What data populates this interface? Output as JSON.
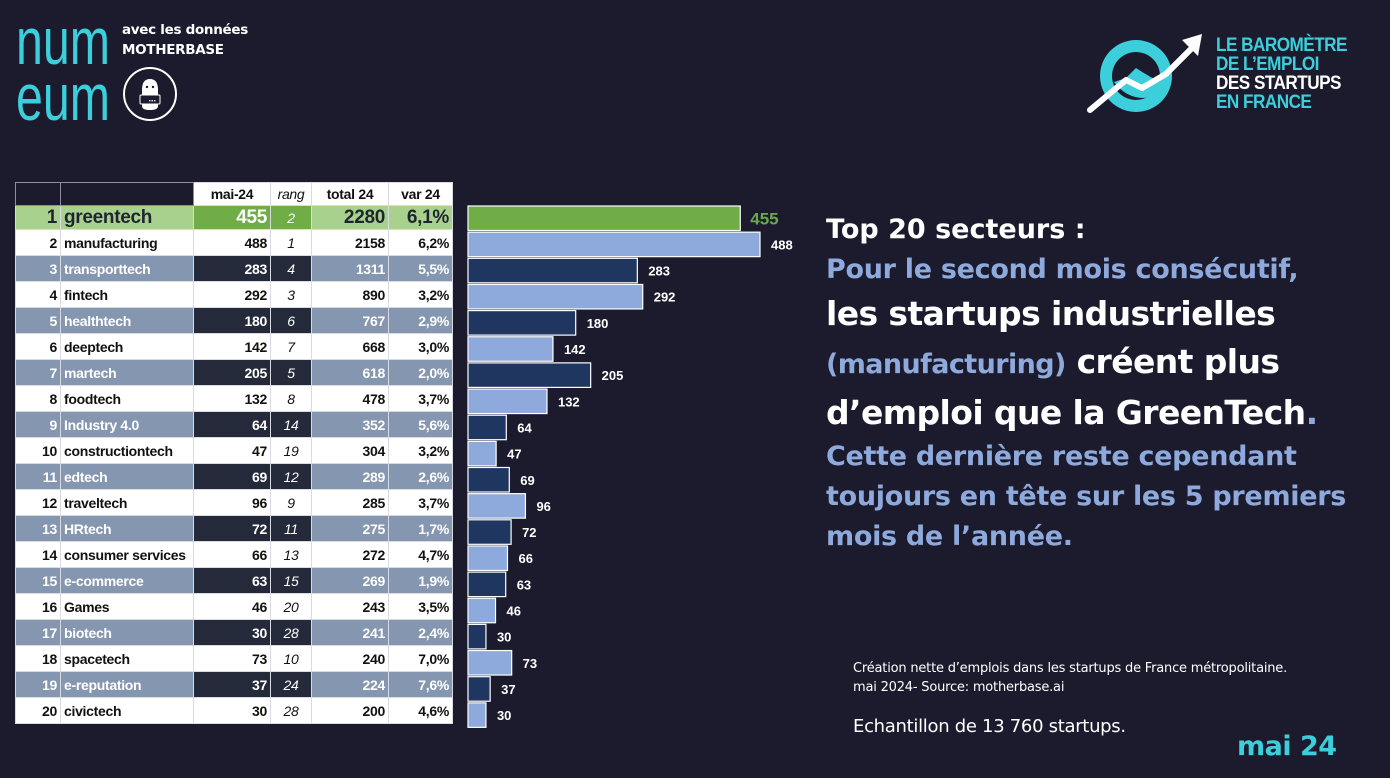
{
  "header": {
    "logo_name": "numeum",
    "logo_lines": [
      "num",
      "eum"
    ],
    "partner_line1": "avec les données",
    "partner_line2": "MOTHERBASE",
    "mascot_icon": "motherbase-mascot-icon",
    "barometre_lines": [
      "LE BAROMÈTRE",
      "DE L’EMPLOI",
      "DES STARTUPS",
      "EN FRANCE"
    ],
    "barometre_icon": "trend-arrow-circle-icon"
  },
  "colors": {
    "background": "#1c1b2e",
    "accent_cyan": "#3ccfdb",
    "accent_blue_text": "#8ea9db",
    "green_bar": "#70ad47",
    "green_row": "#a9d18e",
    "light_bar": "#8eaadc",
    "dark_bar": "#1f3660",
    "blue_row": "#8597b0",
    "dark_cell": "#242a39"
  },
  "table": {
    "headers": [
      "",
      "",
      "mai-24",
      "rang",
      "total 24",
      "var 24"
    ],
    "rows": [
      {
        "rank": "1",
        "sector": "greentech",
        "mai": "455",
        "rang": "2",
        "total": "2280",
        "var": "6,1%"
      },
      {
        "rank": "2",
        "sector": "manufacturing",
        "mai": "488",
        "rang": "1",
        "total": "2158",
        "var": "6,2%"
      },
      {
        "rank": "3",
        "sector": "transporttech",
        "mai": "283",
        "rang": "4",
        "total": "1311",
        "var": "5,5%"
      },
      {
        "rank": "4",
        "sector": "fintech",
        "mai": "292",
        "rang": "3",
        "total": "890",
        "var": "3,2%"
      },
      {
        "rank": "5",
        "sector": "healthtech",
        "mai": "180",
        "rang": "6",
        "total": "767",
        "var": "2,9%"
      },
      {
        "rank": "6",
        "sector": "deeptech",
        "mai": "142",
        "rang": "7",
        "total": "668",
        "var": "3,0%"
      },
      {
        "rank": "7",
        "sector": "martech",
        "mai": "205",
        "rang": "5",
        "total": "618",
        "var": "2,0%"
      },
      {
        "rank": "8",
        "sector": "foodtech",
        "mai": "132",
        "rang": "8",
        "total": "478",
        "var": "3,7%"
      },
      {
        "rank": "9",
        "sector": "Industry 4.0",
        "mai": "64",
        "rang": "14",
        "total": "352",
        "var": "5,6%"
      },
      {
        "rank": "10",
        "sector": "constructiontech",
        "mai": "47",
        "rang": "19",
        "total": "304",
        "var": "3,2%"
      },
      {
        "rank": "11",
        "sector": "edtech",
        "mai": "69",
        "rang": "12",
        "total": "289",
        "var": "2,6%"
      },
      {
        "rank": "12",
        "sector": "traveltech",
        "mai": "96",
        "rang": "9",
        "total": "285",
        "var": "3,7%"
      },
      {
        "rank": "13",
        "sector": "HRtech",
        "mai": "72",
        "rang": "11",
        "total": "275",
        "var": "1,7%"
      },
      {
        "rank": "14",
        "sector": "consumer services",
        "mai": "66",
        "rang": "13",
        "total": "272",
        "var": "4,7%"
      },
      {
        "rank": "15",
        "sector": "e-commerce",
        "mai": "63",
        "rang": "15",
        "total": "269",
        "var": "1,9%"
      },
      {
        "rank": "16",
        "sector": "Games",
        "mai": "46",
        "rang": "20",
        "total": "243",
        "var": "3,5%"
      },
      {
        "rank": "17",
        "sector": "biotech",
        "mai": "30",
        "rang": "28",
        "total": "241",
        "var": "2,4%"
      },
      {
        "rank": "18",
        "sector": "spacetech",
        "mai": "73",
        "rang": "10",
        "total": "240",
        "var": "7,0%"
      },
      {
        "rank": "19",
        "sector": "e-reputation",
        "mai": "37",
        "rang": "24",
        "total": "224",
        "var": "7,6%"
      },
      {
        "rank": "20",
        "sector": "civictech",
        "mai": "30",
        "rang": "28",
        "total": "200",
        "var": "4,6%"
      }
    ]
  },
  "chart_data": {
    "type": "bar",
    "orientation": "horizontal",
    "title": "",
    "xlabel": "",
    "ylabel": "",
    "xlim": [
      0,
      500
    ],
    "grid": false,
    "legend": "none",
    "categories": [
      "greentech",
      "manufacturing",
      "transporttech",
      "fintech",
      "healthtech",
      "deeptech",
      "martech",
      "foodtech",
      "Industry 4.0",
      "constructiontech",
      "edtech",
      "traveltech",
      "HRtech",
      "consumer services",
      "e-commerce",
      "Games",
      "biotech",
      "spacetech",
      "e-reputation",
      "civictech"
    ],
    "values": [
      455,
      488,
      283,
      292,
      180,
      142,
      205,
      132,
      64,
      47,
      69,
      96,
      72,
      66,
      63,
      46,
      30,
      73,
      37,
      30
    ],
    "data_labels": [
      "455",
      "488",
      "283",
      "292",
      "180",
      "142",
      "205",
      "132",
      "64",
      "47",
      "69",
      "96",
      "72",
      "66",
      "63",
      "46",
      "30",
      "73",
      "37",
      "30"
    ],
    "bar_styles": [
      "green",
      "light",
      "dark",
      "light",
      "dark",
      "light",
      "dark",
      "light",
      "dark",
      "light",
      "dark",
      "light",
      "dark",
      "light",
      "dark",
      "light",
      "dark",
      "light",
      "dark",
      "light"
    ]
  },
  "headline": {
    "line1": "Top 20 secteurs :",
    "line2": "Pour le second mois consécutif,",
    "line3": "les startups industrielles",
    "line4a": "(manufacturing)",
    "line4b": " créent plus",
    "line5a": "d’emploi que la GreenTech",
    "line5b": ".",
    "line6": "Cette dernière reste cependant",
    "line7": "toujours en tête sur les 5 premiers",
    "line8": "mois de l’année."
  },
  "footer": {
    "note_line1": "Création nette d’emplois dans les startups de France métropolitaine.",
    "note_line2": "mai 2024- Source: motherbase.ai",
    "sample": "Echantillon de 13 760 startups.",
    "month": "mai 24"
  }
}
